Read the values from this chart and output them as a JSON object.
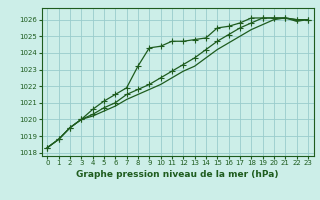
{
  "background_color": "#cceee8",
  "grid_color": "#99cccc",
  "line_color": "#1e5c1e",
  "title": "Graphe pression niveau de la mer (hPa)",
  "xlim": [
    -0.5,
    23.5
  ],
  "ylim": [
    1017.8,
    1026.7
  ],
  "yticks": [
    1018,
    1019,
    1020,
    1021,
    1022,
    1023,
    1024,
    1025,
    1026
  ],
  "xticks": [
    0,
    1,
    2,
    3,
    4,
    5,
    6,
    7,
    8,
    9,
    10,
    11,
    12,
    13,
    14,
    15,
    16,
    17,
    18,
    19,
    20,
    21,
    22,
    23
  ],
  "series": [
    [
      1018.3,
      1018.8,
      1019.5,
      1020.0,
      1020.6,
      1021.1,
      1021.5,
      1021.9,
      1023.2,
      1024.3,
      1024.4,
      1024.7,
      1024.7,
      1024.8,
      1024.9,
      1025.5,
      1025.6,
      1025.8,
      1026.1,
      1026.1,
      1026.1,
      1026.1,
      1026.0,
      1026.0
    ],
    [
      1018.3,
      1018.8,
      1019.5,
      1020.0,
      1020.3,
      1020.7,
      1021.0,
      1021.5,
      1021.8,
      1022.1,
      1022.5,
      1022.9,
      1023.3,
      1023.7,
      1024.2,
      1024.7,
      1025.1,
      1025.5,
      1025.8,
      1026.1,
      1026.1,
      1026.1,
      1026.0,
      1026.0
    ],
    [
      1018.3,
      1018.8,
      1019.5,
      1020.0,
      1020.2,
      1020.5,
      1020.8,
      1021.2,
      1021.5,
      1021.8,
      1022.1,
      1022.5,
      1022.9,
      1023.2,
      1023.7,
      1024.2,
      1024.6,
      1025.0,
      1025.4,
      1025.7,
      1026.0,
      1026.1,
      1025.9,
      1026.0
    ]
  ],
  "marker_series": [
    0,
    1
  ],
  "title_fontsize": 6.5,
  "tick_fontsize": 5.0,
  "linewidth": 0.9,
  "markersize": 2.8
}
